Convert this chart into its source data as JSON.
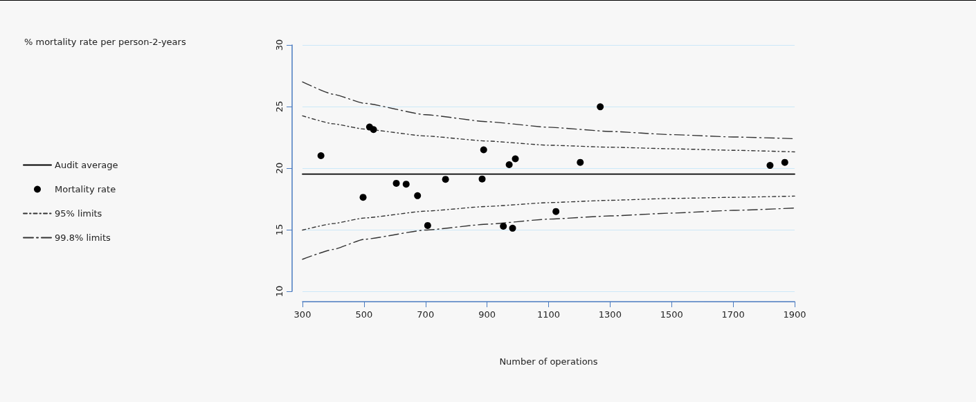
{
  "chart_data": {
    "type": "scatter",
    "annotations": [
      "% mortality rate per person-2-years"
    ],
    "xlabel": "Number of operations",
    "xlim": [
      300,
      1900
    ],
    "xticks": [
      300,
      500,
      700,
      900,
      {
        "value": 1100,
        "label": "1100"
      },
      {
        "value": 1300,
        "label": "1300"
      },
      {
        "value": 1500,
        "label": "1500"
      },
      {
        "value": 1700,
        "label": "1700"
      },
      {
        "value": 1900,
        "label": "1900"
      }
    ],
    "ylim": [
      10,
      30
    ],
    "yticks": [
      10,
      15,
      20,
      25,
      30
    ],
    "grid": "y",
    "legend": "left",
    "series": [
      {
        "name": "Audit average",
        "type": "line",
        "color": "#000000",
        "line_style": "solid",
        "marker": "none",
        "x": [
          300,
          1900
        ],
        "values": [
          19.52,
          19.52
        ]
      },
      {
        "name": "Mortality rate",
        "color": "#000000",
        "marker": "circle",
        "x": [
          360,
          497,
          518,
          531,
          605,
          637,
          674,
          707,
          765,
          884,
          889,
          953,
          972,
          983,
          992,
          1124,
          1203,
          1268,
          1820,
          1868
        ],
        "values": [
          21.01,
          17.63,
          23.34,
          23.13,
          18.77,
          18.7,
          17.76,
          15.34,
          19.09,
          19.12,
          21.49,
          15.28,
          20.28,
          15.12,
          20.76,
          16.48,
          20.47,
          24.98,
          20.22,
          20.47
        ]
      },
      {
        "name": "95% limits",
        "type": "line",
        "color": "#333333",
        "line_style": "dotted",
        "marker": "none",
        "x": [
          300,
          400,
          500,
          700,
          900,
          1100,
          1300,
          1500,
          1700,
          1900
        ],
        "values": [
          24.25,
          23.6,
          23.17,
          22.61,
          22.2,
          21.86,
          21.7,
          21.57,
          21.45,
          21.32
        ]
      },
      {
        "type": "line",
        "color": "#333333",
        "line_style": "dotted",
        "marker": "none",
        "x": [
          300,
          400,
          500,
          700,
          900,
          1100,
          1300,
          1500,
          1700,
          1900
        ],
        "values": [
          14.97,
          15.5,
          15.95,
          16.51,
          16.89,
          17.2,
          17.39,
          17.54,
          17.63,
          17.73
        ]
      },
      {
        "name": "99.8% limits",
        "type": "line",
        "color": "#333333",
        "line_style": "dashed",
        "marker": "none",
        "x": [
          300,
          400,
          500,
          700,
          900,
          1100,
          1300,
          1500,
          1700,
          1900
        ],
        "values": [
          27.0,
          26.0,
          25.27,
          24.34,
          23.77,
          23.32,
          22.98,
          22.72,
          22.53,
          22.39
        ]
      },
      {
        "type": "line",
        "color": "#333333",
        "line_style": "dashed",
        "marker": "none",
        "x": [
          300,
          400,
          500,
          700,
          900,
          1100,
          1300,
          1500,
          1700,
          1900
        ],
        "values": [
          12.6,
          13.4,
          14.22,
          14.97,
          15.45,
          15.86,
          16.12,
          16.35,
          16.57,
          16.76
        ]
      }
    ]
  }
}
